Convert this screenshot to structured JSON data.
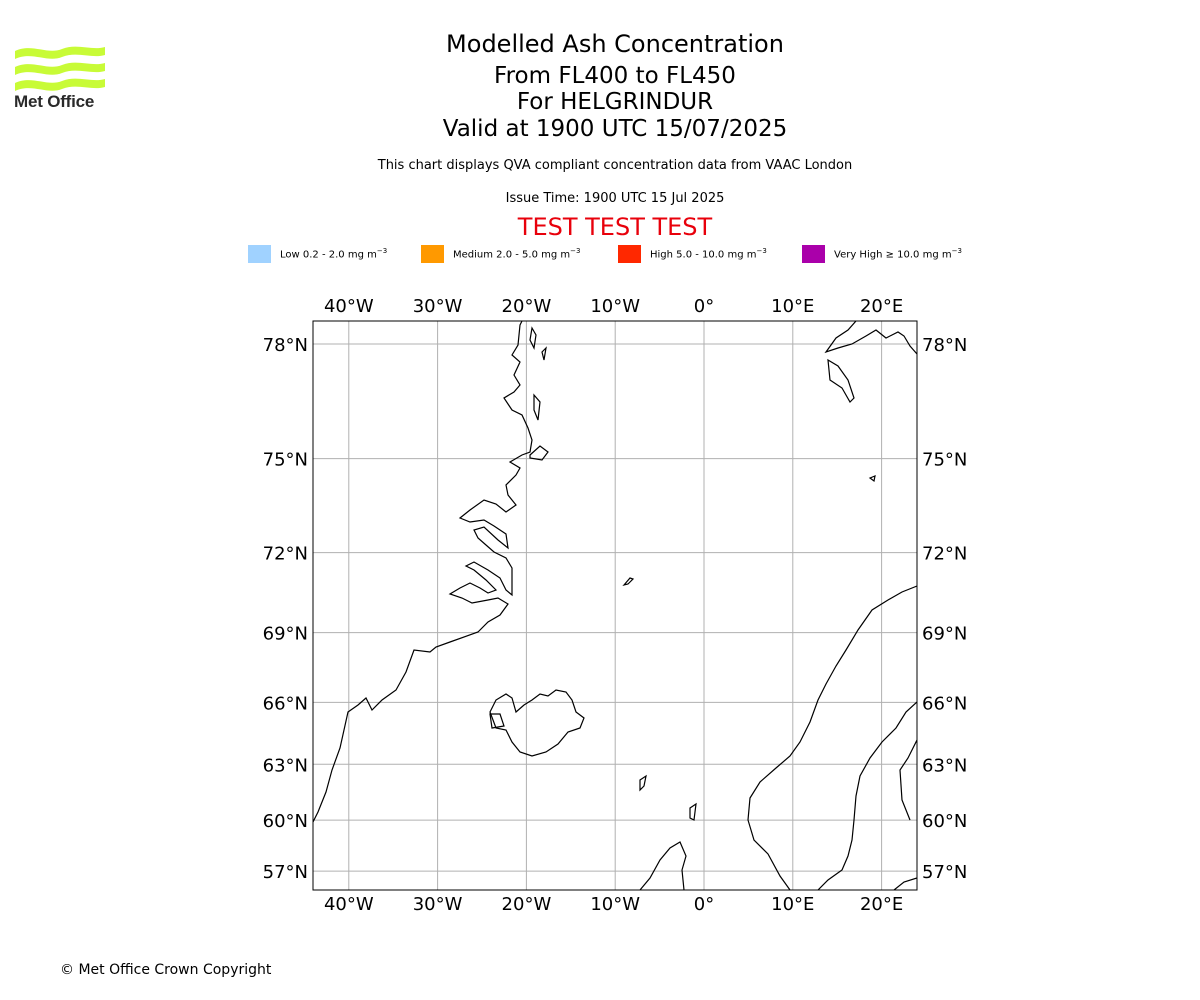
{
  "logo": {
    "text": "Met Office",
    "icon": "met-office-wave-logo",
    "color": "#c8fb37"
  },
  "title": {
    "main": "Modelled Ash Concentration",
    "levels": "From FL400 to FL450",
    "volcano": "For HELGRINDUR",
    "valid": "Valid at 1900 UTC 15/07/2025"
  },
  "subtitle": "This chart displays QVA compliant concentration data from VAAC London",
  "issue_time": "Issue Time: 1900 UTC 15 Jul 2025",
  "test_banner": "TEST TEST TEST",
  "legend": [
    {
      "label": "Low 0.2 - 2.0 mg m",
      "color": "#a0d2ff"
    },
    {
      "label": "Medium 2.0 - 5.0 mg m",
      "color": "#ff9900"
    },
    {
      "label": "High 5.0 - 10.0 mg m",
      "color": "#ff2800"
    },
    {
      "label": "Very High ≥ 10.0 mg m",
      "color": "#aa00aa"
    }
  ],
  "legend_unit_exponent": "−3",
  "map": {
    "lon_ticks": [
      "40°W",
      "30°W",
      "20°W",
      "10°W",
      "0°",
      "10°E",
      "20°E"
    ],
    "lat_ticks": [
      "78°N",
      "75°N",
      "72°N",
      "69°N",
      "66°N",
      "63°N",
      "60°N",
      "57°N"
    ],
    "lon_values": [
      -40,
      -30,
      -20,
      -10,
      0,
      10,
      20
    ],
    "lat_values": [
      78,
      75,
      72,
      69,
      66,
      63,
      60,
      57
    ],
    "volcano": {
      "name": "HELGRINDUR",
      "lat": 64.9,
      "lon": -23.3
    }
  },
  "copyright": "© Met Office Crown Copyright"
}
